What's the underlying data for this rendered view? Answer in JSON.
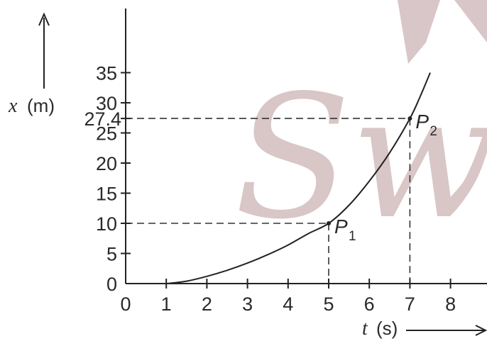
{
  "chart_data": {
    "type": "line",
    "xlabel": "t",
    "xunit": "(s)",
    "ylabel": "x",
    "yunit": "(m)",
    "xlim": [
      0,
      8.7
    ],
    "ylim": [
      0,
      40
    ],
    "x_ticks": [
      "0",
      "1",
      "2",
      "3",
      "4",
      "5",
      "6",
      "7",
      "8"
    ],
    "y_ticks": [
      "0",
      "5",
      "10",
      "15",
      "20",
      "25",
      "30",
      "35"
    ],
    "y_special_tick": "27.4",
    "series": [
      {
        "x": [
          1,
          1.5,
          2,
          2.5,
          3,
          3.5,
          4,
          4.5,
          5,
          5.5,
          6,
          6.5,
          7,
          7.25,
          7.5
        ],
        "y": [
          0,
          0.4,
          1.2,
          2.2,
          3.4,
          4.8,
          6.4,
          8.3,
          10,
          13,
          17,
          21.7,
          27.4,
          31,
          35
        ]
      }
    ],
    "points": [
      {
        "label": "P",
        "sub": "1",
        "x": 5,
        "y": 10
      },
      {
        "label": "P",
        "sub": "2",
        "x": 7,
        "y": 27.4
      }
    ],
    "watermark": "Swott",
    "colors": {
      "curve": "#222222",
      "axis": "#222222",
      "guide": "#333333",
      "watermark": "#c9aeb0"
    }
  }
}
